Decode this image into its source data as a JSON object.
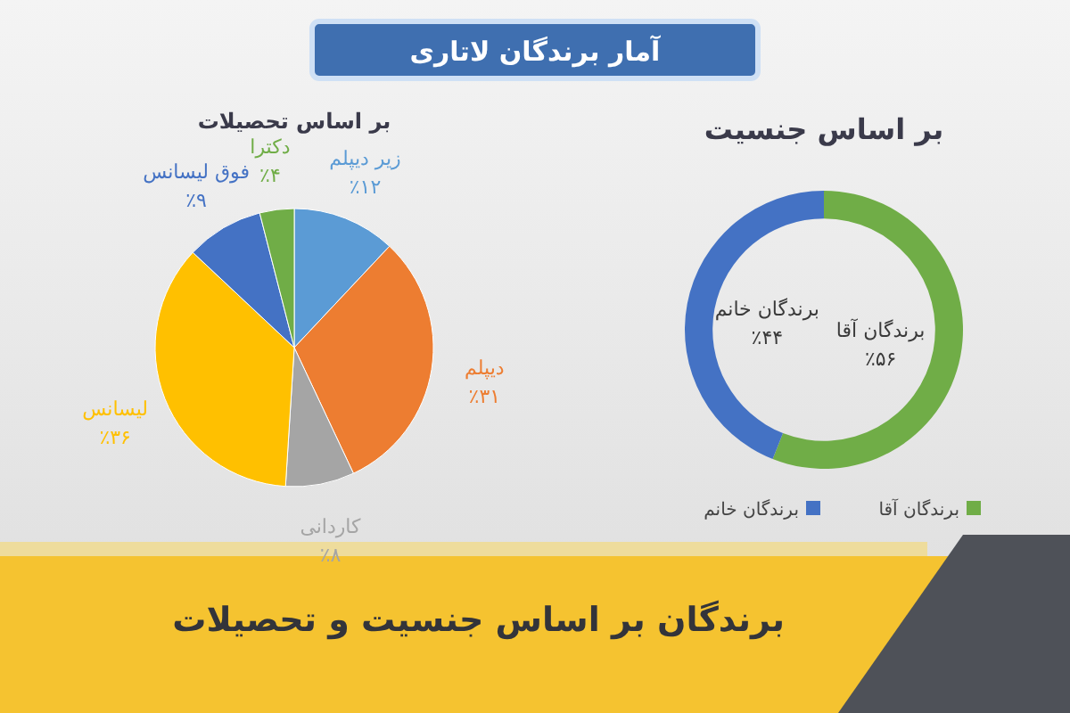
{
  "chart_data": [
    {
      "type": "pie",
      "title": "بر اساس تحصیلات",
      "categories": [
        "زیر دیپلم",
        "دیپلم",
        "کاردانی",
        "لیسانس",
        "فوق لیسانس",
        "دکترا"
      ],
      "values": [
        12,
        31,
        8,
        36,
        9,
        4
      ],
      "colors": [
        "#5b9bd5",
        "#ed7d31",
        "#a5a5a5",
        "#ffc000",
        "#4472c4",
        "#70ad47"
      ],
      "value_labels": [
        "٪۱۲",
        "٪۳۱",
        "٪۸",
        "٪۳۶",
        "٪۹",
        "٪۴"
      ],
      "annotations": [
        "آمار برندگان لاتاری",
        "برندگان بر اساس جنسیت و تحصیلات"
      ]
    },
    {
      "type": "donut",
      "title": "بر اساس جنسیت",
      "categories": [
        "برندگان آقا",
        "برندگان خانم"
      ],
      "values": [
        56,
        44
      ],
      "colors": [
        "#70ad47",
        "#4472c4"
      ],
      "value_labels": [
        "٪۵۶",
        "٪۴۴"
      ],
      "legend": "bottom"
    }
  ]
}
